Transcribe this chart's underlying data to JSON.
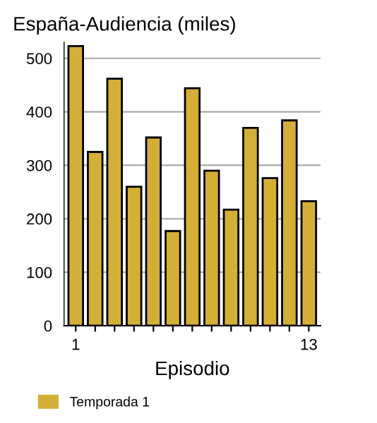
{
  "chart_data": {
    "type": "bar",
    "title": "España-Audiencia (miles)",
    "xlabel": "Episodio",
    "categories": [
      "1",
      null,
      null,
      null,
      null,
      null,
      null,
      null,
      null,
      null,
      null,
      null,
      "13"
    ],
    "series": [
      {
        "name": "Temporada 1",
        "color": "#d4af37",
        "values": [
          523,
          325,
          462,
          260,
          352,
          177,
          444,
          290,
          217,
          370,
          276,
          384,
          233
        ]
      }
    ],
    "ylim": [
      0,
      530
    ],
    "yticks": [
      0,
      100,
      200,
      300,
      400,
      500
    ],
    "grid": "y",
    "legend": "bottom"
  }
}
